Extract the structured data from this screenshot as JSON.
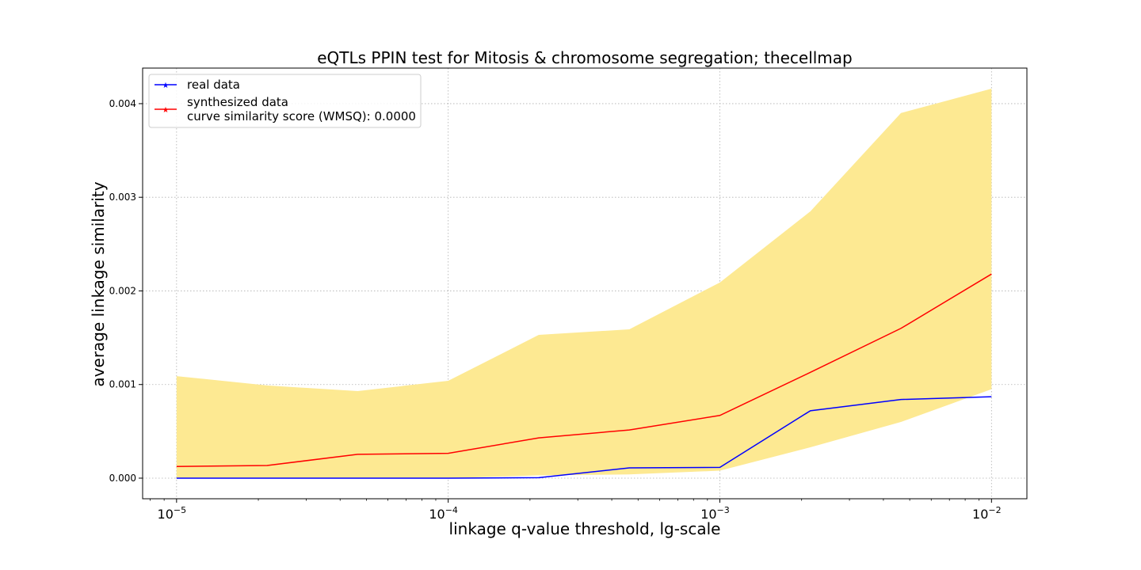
{
  "chart_data": {
    "type": "line",
    "title": "eQTLs PPIN test for Mitosis & chromosome segregation; thecellmap",
    "xlabel": "linkage q-value threshold, lg-scale",
    "ylabel": "average linkage similarity",
    "x_scale": "log",
    "xlim": [
      7.5e-06,
      0.0135
    ],
    "ylim": [
      -0.00022,
      0.00438
    ],
    "grid": true,
    "legend_position": "top-left",
    "x": [
      1e-05,
      2.154e-05,
      4.642e-05,
      0.0001,
      0.0002154,
      0.0004642,
      0.001,
      0.002154,
      0.004642,
      0.01
    ],
    "xticks": [
      {
        "value": 1e-05,
        "base": "10",
        "exp": "−5"
      },
      {
        "value": 0.0001,
        "base": "10",
        "exp": "−4"
      },
      {
        "value": 0.001,
        "base": "10",
        "exp": "−3"
      },
      {
        "value": 0.01,
        "base": "10",
        "exp": "−2"
      }
    ],
    "yticks": [
      {
        "value": 0.0,
        "label": "0.000"
      },
      {
        "value": 0.001,
        "label": "0.001"
      },
      {
        "value": 0.002,
        "label": "0.002"
      },
      {
        "value": 0.003,
        "label": "0.003"
      },
      {
        "value": 0.004,
        "label": "0.004"
      }
    ],
    "series": [
      {
        "name": "real data",
        "color": "#0000ff",
        "values": [
          0.0,
          0.0,
          0.0,
          0.0,
          5e-06,
          0.00011,
          0.000115,
          0.00072,
          0.00084,
          0.00087
        ]
      },
      {
        "name": "synthesized data",
        "name_line2": "curve similarity score (WMSQ): 0.0000",
        "color": "#ff0000",
        "values": [
          0.000125,
          0.000135,
          0.000255,
          0.000265,
          0.00043,
          0.000515,
          0.00067,
          0.00113,
          0.0016,
          0.00218
        ]
      }
    ],
    "band": {
      "color": "#fde992",
      "upper": [
        0.00109,
        0.00099,
        0.00093,
        0.00104,
        0.00153,
        0.00159,
        0.00209,
        0.00285,
        0.0039,
        0.00416
      ],
      "lower": [
        0.0,
        0.0,
        0.0,
        0.0,
        3e-05,
        4e-05,
        8e-05,
        0.00033,
        0.0006,
        0.00095
      ]
    }
  }
}
